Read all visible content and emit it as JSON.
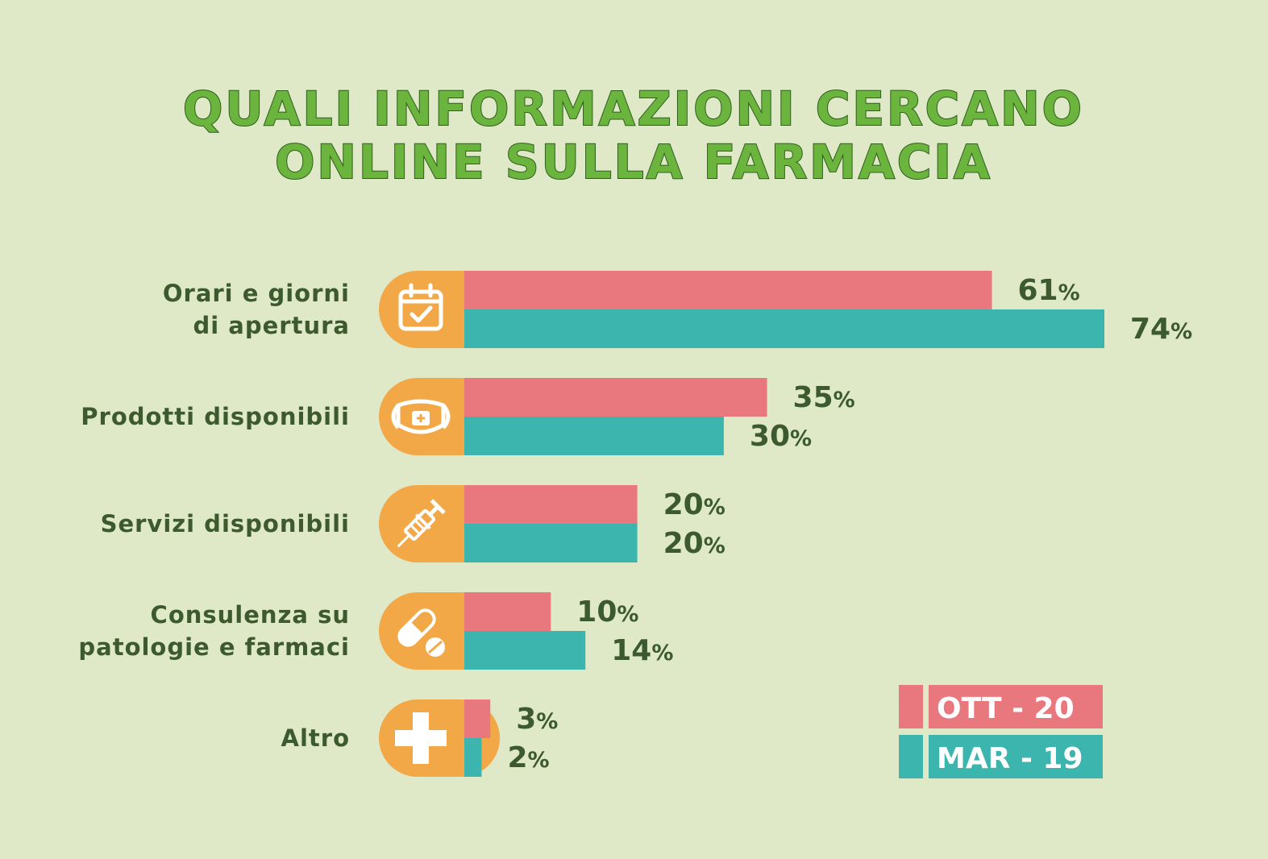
{
  "chart_data": {
    "type": "bar",
    "orientation": "horizontal",
    "title": "QUALI INFORMAZIONI CERCANO ONLINE SULLA FARMACIA",
    "title_lines": [
      "QUALI INFORMAZIONI CERCANO",
      "ONLINE SULLA FARMACIA"
    ],
    "categories": [
      {
        "label_lines": [
          "Orari e giorni",
          "di apertura"
        ],
        "icon": "calendar-check-icon"
      },
      {
        "label_lines": [
          "Prodotti disponibili"
        ],
        "icon": "medical-mask-icon"
      },
      {
        "label_lines": [
          "Servizi disponibili"
        ],
        "icon": "syringe-icon"
      },
      {
        "label_lines": [
          "Consulenza su",
          "patologie e farmaci"
        ],
        "icon": "pills-icon"
      },
      {
        "label_lines": [
          "Altro"
        ],
        "icon": "plus-icon"
      }
    ],
    "series": [
      {
        "name": "OTT - 20",
        "color": "#e8787e",
        "values": [
          61,
          35,
          20,
          10,
          3
        ]
      },
      {
        "name": "MAR - 19",
        "color": "#3bb5ad",
        "values": [
          74,
          30,
          20,
          14,
          2
        ]
      }
    ],
    "value_suffix": "%",
    "xlim": [
      0,
      74
    ],
    "icon_color": "#f2a847",
    "legend": {
      "placement": "bottom-right"
    }
  }
}
